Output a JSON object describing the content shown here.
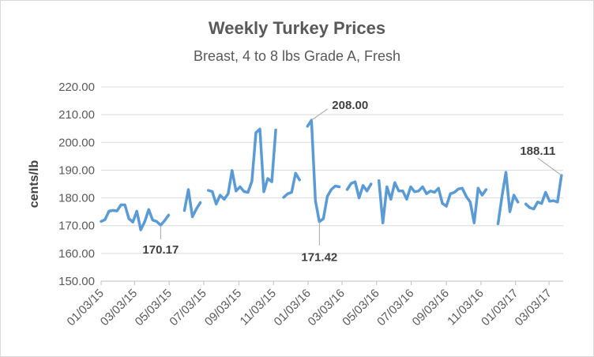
{
  "chart_data": {
    "type": "line",
    "title": "Weekly Turkey Prices",
    "subtitle": "Breast, 4 to 8 lbs Grade A, Fresh",
    "ylabel": "cents/lb",
    "xlabel": "",
    "ylim": [
      150,
      220
    ],
    "y_ticks": [
      "150.00",
      "160.00",
      "170.00",
      "180.00",
      "190.00",
      "200.00",
      "210.00",
      "220.00"
    ],
    "x_range": [
      "2015-01-03",
      "2017-03-28"
    ],
    "x_ticks": [
      "01/03/15",
      "03/03/15",
      "05/03/15",
      "07/03/15",
      "09/03/15",
      "11/03/15",
      "01/03/16",
      "03/03/16",
      "05/03/16",
      "07/03/16",
      "09/03/16",
      "11/03/16",
      "01/03/17",
      "03/03/17"
    ],
    "grid": true,
    "legend": "none",
    "color": "#5b9bd5",
    "segments": [
      {
        "dates": [
          "2015-01-03",
          "2015-01-10",
          "2015-01-17",
          "2015-01-24",
          "2015-01-31",
          "2015-02-07",
          "2015-02-14",
          "2015-02-21",
          "2015-02-28",
          "2015-03-07",
          "2015-03-14",
          "2015-03-21",
          "2015-03-28",
          "2015-04-04",
          "2015-04-11",
          "2015-04-18",
          "2015-04-25",
          "2015-05-02",
          "2015-05-09",
          "2015-05-16"
        ],
        "values": [
          171.5,
          172.2,
          175.2,
          175.5,
          175.3,
          177.5,
          177.5,
          172.5,
          171.3,
          175.2,
          168.5,
          171.5,
          175.8,
          172.0,
          171.5,
          170.17,
          171.8,
          173.8,
          null,
          null
        ]
      },
      {
        "dates": [
          "2015-05-30",
          "2015-06-06",
          "2015-06-13",
          "2015-06-20",
          "2015-06-27"
        ],
        "values": [
          175.5,
          183.0,
          173.2,
          176.0,
          178.3
        ]
      },
      {
        "dates": [
          "2015-07-11",
          "2015-07-18",
          "2015-07-25",
          "2015-08-01",
          "2015-08-08",
          "2015-08-15",
          "2015-08-22",
          "2015-08-29",
          "2015-09-05",
          "2015-09-12",
          "2015-09-19",
          "2015-09-26",
          "2015-10-03",
          "2015-10-10",
          "2015-10-17",
          "2015-10-24",
          "2015-10-31",
          "2015-11-07"
        ],
        "values": [
          182.7,
          182.3,
          177.8,
          181.0,
          179.5,
          181.5,
          189.9,
          182.5,
          184.0,
          182.3,
          182.0,
          186.0,
          203.5,
          204.8,
          182.2,
          187.0,
          185.8,
          204.5
        ]
      },
      {
        "dates": [
          "2015-11-21",
          "2015-11-28",
          "2015-12-05",
          "2015-12-12",
          "2015-12-19"
        ],
        "values": [
          180.2,
          181.5,
          182.0,
          188.9,
          186.5
        ]
      },
      {
        "dates": [
          "2016-01-02",
          "2016-01-09",
          "2016-01-16",
          "2016-01-23",
          "2016-01-30",
          "2016-02-06",
          "2016-02-13",
          "2016-02-20",
          "2016-02-27"
        ],
        "values": [
          205.8,
          208.0,
          179.0,
          171.42,
          172.5,
          180.5,
          183.0,
          184.3,
          184.0
        ]
      },
      {
        "dates": [
          "2016-03-12",
          "2016-03-19",
          "2016-03-26",
          "2016-04-02",
          "2016-04-09",
          "2016-04-16",
          "2016-04-23"
        ],
        "values": [
          183.0,
          185.2,
          185.8,
          180.0,
          184.5,
          182.5,
          185.0
        ]
      },
      {
        "dates": [
          "2016-05-07",
          "2016-05-14",
          "2016-05-21",
          "2016-05-28",
          "2016-06-04",
          "2016-06-11",
          "2016-06-18",
          "2016-06-25",
          "2016-07-02",
          "2016-07-09",
          "2016-07-16",
          "2016-07-23",
          "2016-07-30",
          "2016-08-06",
          "2016-08-13",
          "2016-08-20",
          "2016-08-27",
          "2016-09-03",
          "2016-09-10",
          "2016-09-17",
          "2016-09-24",
          "2016-10-01",
          "2016-10-08",
          "2016-10-15",
          "2016-10-22",
          "2016-10-29",
          "2016-11-05",
          "2016-11-12"
        ],
        "values": [
          186.2,
          171.0,
          184.0,
          179.5,
          185.5,
          182.5,
          182.5,
          179.5,
          184.0,
          182.2,
          182.5,
          184.0,
          181.5,
          182.5,
          182.0,
          183.5,
          178.0,
          177.0,
          181.5,
          182.0,
          183.2,
          183.5,
          180.5,
          178.5,
          171.0,
          183.5,
          181.0,
          183.0
        ]
      },
      {
        "dates": [
          "2016-12-03",
          "2016-12-10",
          "2016-12-17",
          "2016-12-24",
          "2016-12-31",
          "2017-01-07",
          "2017-01-14"
        ],
        "values": [
          170.7,
          180.5,
          189.2,
          175.0,
          181.0,
          178.5,
          null
        ]
      },
      {
        "dates": [
          "2017-01-21",
          "2017-01-28",
          "2017-02-04",
          "2017-02-11",
          "2017-02-18",
          "2017-02-25",
          "2017-03-04",
          "2017-03-11",
          "2017-03-18",
          "2017-03-25"
        ],
        "values": [
          177.8,
          176.5,
          176.0,
          178.5,
          178.0,
          182.0,
          178.8,
          179.0,
          178.5,
          188.11
        ]
      }
    ],
    "annotations": [
      {
        "text": "170.17",
        "date": "2015-04-18",
        "value": 170.17
      },
      {
        "text": "208.00",
        "date": "2016-01-09",
        "value": 208.0
      },
      {
        "text": "171.42",
        "date": "2016-01-23",
        "value": 171.42
      },
      {
        "text": "188.11",
        "date": "2017-03-25",
        "value": 188.11
      }
    ]
  }
}
